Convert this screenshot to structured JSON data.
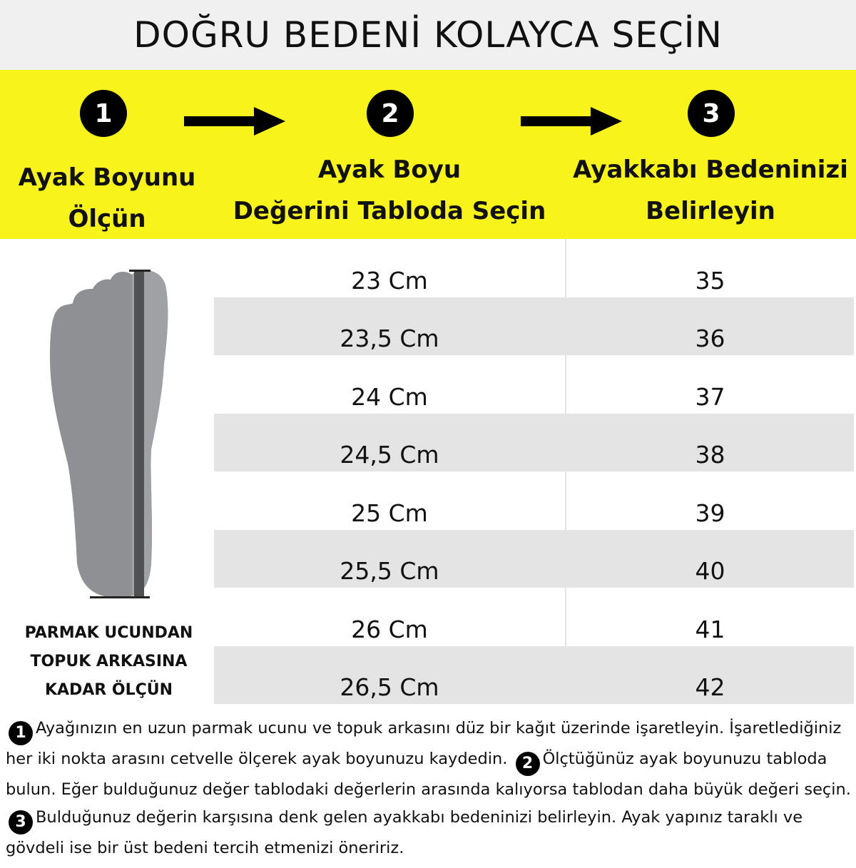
{
  "title": "DOĞRU BEDENİ KOLAYCA SEÇİN",
  "colors": {
    "band": "#f9f31c",
    "row_alt": "#e4e4e4",
    "title_bg": "#f0f0f0"
  },
  "steps": [
    {
      "number": "1",
      "label_line1": "Ayak Boyunu",
      "label_line2": "Ölçün"
    },
    {
      "number": "2",
      "label_line1": "Ayak Boyu",
      "label_line2": "Değerini Tabloda Seçin"
    },
    {
      "number": "3",
      "label_line1": "Ayakkabı Bedeninizi",
      "label_line2": "Belirleyin"
    }
  ],
  "table": {
    "rows": [
      {
        "length": "23 Cm",
        "size": "35"
      },
      {
        "length": "23,5 Cm",
        "size": "36"
      },
      {
        "length": "24 Cm",
        "size": "37"
      },
      {
        "length": "24,5 Cm",
        "size": "38"
      },
      {
        "length": "25 Cm",
        "size": "39"
      },
      {
        "length": "25,5 Cm",
        "size": "40"
      },
      {
        "length": "26 Cm",
        "size": "41"
      },
      {
        "length": "26,5 Cm",
        "size": "42"
      }
    ]
  },
  "caption": {
    "line1": "PARMAK UCUNDAN",
    "line2": "TOPUK ARKASINA",
    "line3": "KADAR ÖLÇÜN"
  },
  "notes": {
    "n1": "1",
    "t1": "Ayağınızın en uzun parmak ucunu ve topuk arkasını düz bir kağıt üzerinde işaretleyin. İşaretlediğiniz her iki nokta arasını cetvelle ölçerek ayak boyunuzu kaydedin.",
    "n2": "2",
    "t2": "Ölçtüğünüz ayak boyunuzu tabloda bulun. Eğer bulduğunuz değer tablodaki değerlerin arasında kalıyorsa tablodan daha büyük değeri seçin.",
    "n3": "3",
    "t3": "Bulduğunuz değerin karşısına denk gelen ayakkabı bedeninizi belirleyin. Ayak yapınız taraklı ve gövdeli ise bir üst bedeni tercih etmenizi öneririz."
  }
}
